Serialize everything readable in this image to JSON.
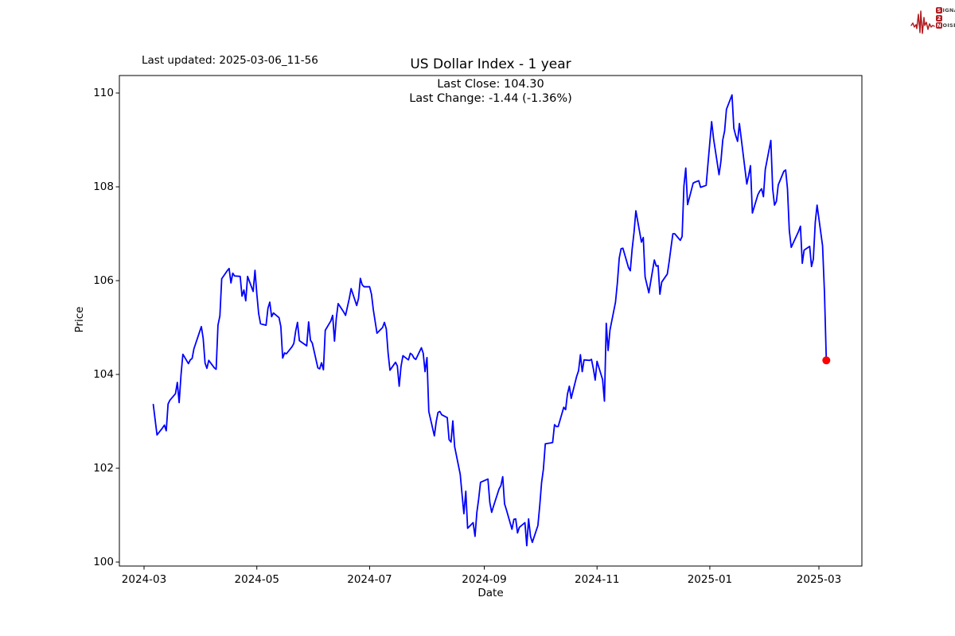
{
  "header": {
    "last_updated": "Last updated: 2025-03-06_11-56"
  },
  "logo": {
    "color": "#b01e23",
    "rows": [
      {
        "badge": "S",
        "text": "IGNAL"
      },
      {
        "badge": "2",
        "text": ""
      },
      {
        "badge": "N",
        "text": "OISE"
      }
    ]
  },
  "chart_data": {
    "type": "line",
    "title": "US Dollar Index - 1 year",
    "annotation_lines": [
      "Last Close: 104.30",
      "Last Change: -1.44 (-1.36%)"
    ],
    "xlabel": "Date",
    "ylabel": "Price",
    "line_color": "#0000ff",
    "marker_color": "#ff0000",
    "background": "#ffffff",
    "grid": false,
    "legend": false,
    "ylim": [
      99.9,
      110.37
    ],
    "xlim": [
      "2024-02-17",
      "2025-03-24"
    ],
    "y_ticks": [
      100,
      102,
      104,
      106,
      108,
      110
    ],
    "x_ticks": [
      {
        "label": "2024-03",
        "date": "2024-03-01"
      },
      {
        "label": "2024-05",
        "date": "2024-05-01"
      },
      {
        "label": "2024-07",
        "date": "2024-07-01"
      },
      {
        "label": "2024-09",
        "date": "2024-09-01"
      },
      {
        "label": "2024-11",
        "date": "2024-11-01"
      },
      {
        "label": "2025-01",
        "date": "2025-01-01"
      },
      {
        "label": "2025-03",
        "date": "2025-03-01"
      }
    ],
    "last_point": {
      "date": "2025-03-05",
      "value": 104.3
    },
    "series": [
      {
        "name": "US Dollar Index",
        "points": [
          [
            "2024-03-06",
            103.36
          ],
          [
            "2024-03-07",
            103.04
          ],
          [
            "2024-03-08",
            102.71
          ],
          [
            "2024-03-11",
            102.86
          ],
          [
            "2024-03-12",
            102.92
          ],
          [
            "2024-03-13",
            102.8
          ],
          [
            "2024-03-14",
            103.37
          ],
          [
            "2024-03-15",
            103.45
          ],
          [
            "2024-03-18",
            103.59
          ],
          [
            "2024-03-19",
            103.83
          ],
          [
            "2024-03-20",
            103.4
          ],
          [
            "2024-03-21",
            104.0
          ],
          [
            "2024-03-22",
            104.43
          ],
          [
            "2024-03-25",
            104.23
          ],
          [
            "2024-03-26",
            104.31
          ],
          [
            "2024-03-27",
            104.34
          ],
          [
            "2024-03-28",
            104.55
          ],
          [
            "2024-04-01",
            105.02
          ],
          [
            "2024-04-02",
            104.77
          ],
          [
            "2024-04-03",
            104.24
          ],
          [
            "2024-04-04",
            104.13
          ],
          [
            "2024-04-05",
            104.3
          ],
          [
            "2024-04-08",
            104.14
          ],
          [
            "2024-04-09",
            104.11
          ],
          [
            "2024-04-10",
            105.05
          ],
          [
            "2024-04-11",
            105.25
          ],
          [
            "2024-04-12",
            106.04
          ],
          [
            "2024-04-15",
            106.21
          ],
          [
            "2024-04-16",
            106.26
          ],
          [
            "2024-04-17",
            105.95
          ],
          [
            "2024-04-18",
            106.16
          ],
          [
            "2024-04-19",
            106.1
          ],
          [
            "2024-04-22",
            106.09
          ],
          [
            "2024-04-23",
            105.67
          ],
          [
            "2024-04-24",
            105.8
          ],
          [
            "2024-04-25",
            105.57
          ],
          [
            "2024-04-26",
            106.09
          ],
          [
            "2024-04-29",
            105.77
          ],
          [
            "2024-04-30",
            106.22
          ],
          [
            "2024-05-01",
            105.72
          ],
          [
            "2024-05-02",
            105.3
          ],
          [
            "2024-05-03",
            105.08
          ],
          [
            "2024-05-06",
            105.05
          ],
          [
            "2024-05-07",
            105.41
          ],
          [
            "2024-05-08",
            105.54
          ],
          [
            "2024-05-09",
            105.23
          ],
          [
            "2024-05-10",
            105.31
          ],
          [
            "2024-05-13",
            105.21
          ],
          [
            "2024-05-14",
            105.02
          ],
          [
            "2024-05-15",
            104.35
          ],
          [
            "2024-05-16",
            104.46
          ],
          [
            "2024-05-17",
            104.44
          ],
          [
            "2024-05-20",
            104.59
          ],
          [
            "2024-05-21",
            104.66
          ],
          [
            "2024-05-22",
            104.92
          ],
          [
            "2024-05-23",
            105.11
          ],
          [
            "2024-05-24",
            104.72
          ],
          [
            "2024-05-28",
            104.61
          ],
          [
            "2024-05-29",
            105.12
          ],
          [
            "2024-05-30",
            104.73
          ],
          [
            "2024-05-31",
            104.67
          ],
          [
            "2024-06-03",
            104.14
          ],
          [
            "2024-06-04",
            104.12
          ],
          [
            "2024-06-05",
            104.25
          ],
          [
            "2024-06-06",
            104.1
          ],
          [
            "2024-06-07",
            104.94
          ],
          [
            "2024-06-10",
            105.14
          ],
          [
            "2024-06-11",
            105.26
          ],
          [
            "2024-06-12",
            104.71
          ],
          [
            "2024-06-13",
            105.2
          ],
          [
            "2024-06-14",
            105.51
          ],
          [
            "2024-06-17",
            105.33
          ],
          [
            "2024-06-18",
            105.26
          ],
          [
            "2024-06-20",
            105.62
          ],
          [
            "2024-06-21",
            105.83
          ],
          [
            "2024-06-24",
            105.47
          ],
          [
            "2024-06-25",
            105.62
          ],
          [
            "2024-06-26",
            106.05
          ],
          [
            "2024-06-27",
            105.91
          ],
          [
            "2024-06-28",
            105.87
          ],
          [
            "2024-07-01",
            105.87
          ],
          [
            "2024-07-02",
            105.71
          ],
          [
            "2024-07-03",
            105.38
          ],
          [
            "2024-07-05",
            104.88
          ],
          [
            "2024-07-08",
            105.0
          ],
          [
            "2024-07-09",
            105.11
          ],
          [
            "2024-07-10",
            104.97
          ],
          [
            "2024-07-11",
            104.45
          ],
          [
            "2024-07-12",
            104.09
          ],
          [
            "2024-07-15",
            104.26
          ],
          [
            "2024-07-16",
            104.18
          ],
          [
            "2024-07-17",
            103.75
          ],
          [
            "2024-07-18",
            104.17
          ],
          [
            "2024-07-19",
            104.4
          ],
          [
            "2024-07-22",
            104.31
          ],
          [
            "2024-07-23",
            104.45
          ],
          [
            "2024-07-24",
            104.42
          ],
          [
            "2024-07-25",
            104.35
          ],
          [
            "2024-07-26",
            104.32
          ],
          [
            "2024-07-29",
            104.57
          ],
          [
            "2024-07-30",
            104.45
          ],
          [
            "2024-07-31",
            104.06
          ],
          [
            "2024-08-01",
            104.36
          ],
          [
            "2024-08-02",
            103.21
          ],
          [
            "2024-08-05",
            102.69
          ],
          [
            "2024-08-06",
            102.99
          ],
          [
            "2024-08-07",
            103.19
          ],
          [
            "2024-08-08",
            103.21
          ],
          [
            "2024-08-09",
            103.14
          ],
          [
            "2024-08-12",
            103.08
          ],
          [
            "2024-08-13",
            102.61
          ],
          [
            "2024-08-14",
            102.56
          ],
          [
            "2024-08-15",
            103.01
          ],
          [
            "2024-08-16",
            102.46
          ],
          [
            "2024-08-19",
            101.87
          ],
          [
            "2024-08-20",
            101.44
          ],
          [
            "2024-08-21",
            101.03
          ],
          [
            "2024-08-22",
            101.51
          ],
          [
            "2024-08-23",
            100.72
          ],
          [
            "2024-08-26",
            100.84
          ],
          [
            "2024-08-27",
            100.55
          ],
          [
            "2024-08-28",
            101.06
          ],
          [
            "2024-08-29",
            101.35
          ],
          [
            "2024-08-30",
            101.7
          ],
          [
            "2024-09-03",
            101.77
          ],
          [
            "2024-09-04",
            101.27
          ],
          [
            "2024-09-05",
            101.06
          ],
          [
            "2024-09-06",
            101.19
          ],
          [
            "2024-09-09",
            101.56
          ],
          [
            "2024-09-10",
            101.63
          ],
          [
            "2024-09-11",
            101.82
          ],
          [
            "2024-09-12",
            101.24
          ],
          [
            "2024-09-13",
            101.11
          ],
          [
            "2024-09-16",
            100.7
          ],
          [
            "2024-09-17",
            100.91
          ],
          [
            "2024-09-18",
            100.92
          ],
          [
            "2024-09-19",
            100.62
          ],
          [
            "2024-09-20",
            100.74
          ],
          [
            "2024-09-23",
            100.84
          ],
          [
            "2024-09-24",
            100.35
          ],
          [
            "2024-09-25",
            100.92
          ],
          [
            "2024-09-26",
            100.55
          ],
          [
            "2024-09-27",
            100.42
          ],
          [
            "2024-09-30",
            100.78
          ],
          [
            "2024-10-01",
            101.2
          ],
          [
            "2024-10-02",
            101.69
          ],
          [
            "2024-10-03",
            101.98
          ],
          [
            "2024-10-04",
            102.52
          ],
          [
            "2024-10-07",
            102.54
          ],
          [
            "2024-10-08",
            102.55
          ],
          [
            "2024-10-09",
            102.93
          ],
          [
            "2024-10-10",
            102.89
          ],
          [
            "2024-10-11",
            102.89
          ],
          [
            "2024-10-14",
            103.3
          ],
          [
            "2024-10-15",
            103.25
          ],
          [
            "2024-10-16",
            103.58
          ],
          [
            "2024-10-17",
            103.75
          ],
          [
            "2024-10-18",
            103.49
          ],
          [
            "2024-10-21",
            103.96
          ],
          [
            "2024-10-22",
            104.08
          ],
          [
            "2024-10-23",
            104.42
          ],
          [
            "2024-10-24",
            104.06
          ],
          [
            "2024-10-25",
            104.31
          ],
          [
            "2024-10-28",
            104.3
          ],
          [
            "2024-10-29",
            104.32
          ],
          [
            "2024-10-30",
            104.12
          ],
          [
            "2024-10-31",
            103.88
          ],
          [
            "2024-11-01",
            104.28
          ],
          [
            "2024-11-04",
            103.89
          ],
          [
            "2024-11-05",
            103.43
          ],
          [
            "2024-11-06",
            105.09
          ],
          [
            "2024-11-07",
            104.51
          ],
          [
            "2024-11-08",
            104.95
          ],
          [
            "2024-11-11",
            105.54
          ],
          [
            "2024-11-12",
            105.96
          ],
          [
            "2024-11-13",
            106.48
          ],
          [
            "2024-11-14",
            106.68
          ],
          [
            "2024-11-15",
            106.69
          ],
          [
            "2024-11-18",
            106.28
          ],
          [
            "2024-11-19",
            106.21
          ],
          [
            "2024-11-20",
            106.67
          ],
          [
            "2024-11-21",
            107.03
          ],
          [
            "2024-11-22",
            107.49
          ],
          [
            "2024-11-25",
            106.82
          ],
          [
            "2024-11-26",
            106.92
          ],
          [
            "2024-11-27",
            106.08
          ],
          [
            "2024-11-29",
            105.74
          ],
          [
            "2024-12-02",
            106.44
          ],
          [
            "2024-12-03",
            106.31
          ],
          [
            "2024-12-04",
            106.32
          ],
          [
            "2024-12-05",
            105.71
          ],
          [
            "2024-12-06",
            105.97
          ],
          [
            "2024-12-09",
            106.14
          ],
          [
            "2024-12-10",
            106.4
          ],
          [
            "2024-12-11",
            106.7
          ],
          [
            "2024-12-12",
            107.0
          ],
          [
            "2024-12-13",
            107.0
          ],
          [
            "2024-12-16",
            106.86
          ],
          [
            "2024-12-17",
            106.94
          ],
          [
            "2024-12-18",
            108.02
          ],
          [
            "2024-12-19",
            108.4
          ],
          [
            "2024-12-20",
            107.62
          ],
          [
            "2024-12-23",
            108.08
          ],
          [
            "2024-12-24",
            108.1
          ],
          [
            "2024-12-26",
            108.13
          ],
          [
            "2024-12-27",
            107.99
          ],
          [
            "2024-12-30",
            108.03
          ],
          [
            "2024-12-31",
            108.49
          ],
          [
            "2025-01-02",
            109.39
          ],
          [
            "2025-01-03",
            109.03
          ],
          [
            "2025-01-06",
            108.26
          ],
          [
            "2025-01-07",
            108.55
          ],
          [
            "2025-01-08",
            109.0
          ],
          [
            "2025-01-09",
            109.19
          ],
          [
            "2025-01-10",
            109.65
          ],
          [
            "2025-01-13",
            109.96
          ],
          [
            "2025-01-14",
            109.25
          ],
          [
            "2025-01-15",
            109.09
          ],
          [
            "2025-01-16",
            108.97
          ],
          [
            "2025-01-17",
            109.35
          ],
          [
            "2025-01-21",
            108.06
          ],
          [
            "2025-01-22",
            108.24
          ],
          [
            "2025-01-23",
            108.45
          ],
          [
            "2025-01-24",
            107.44
          ],
          [
            "2025-01-27",
            107.83
          ],
          [
            "2025-01-28",
            107.91
          ],
          [
            "2025-01-29",
            107.96
          ],
          [
            "2025-01-30",
            107.79
          ],
          [
            "2025-01-31",
            108.37
          ],
          [
            "2025-02-03",
            108.99
          ],
          [
            "2025-02-04",
            107.96
          ],
          [
            "2025-02-05",
            107.61
          ],
          [
            "2025-02-06",
            107.69
          ],
          [
            "2025-02-07",
            108.04
          ],
          [
            "2025-02-10",
            108.33
          ],
          [
            "2025-02-11",
            108.36
          ],
          [
            "2025-02-12",
            107.96
          ],
          [
            "2025-02-13",
            107.07
          ],
          [
            "2025-02-14",
            106.71
          ],
          [
            "2025-02-18",
            107.05
          ],
          [
            "2025-02-19",
            107.16
          ],
          [
            "2025-02-20",
            106.37
          ],
          [
            "2025-02-21",
            106.65
          ],
          [
            "2025-02-24",
            106.73
          ],
          [
            "2025-02-25",
            106.3
          ],
          [
            "2025-02-26",
            106.46
          ],
          [
            "2025-02-27",
            107.24
          ],
          [
            "2025-02-28",
            107.61
          ],
          [
            "2025-03-03",
            106.74
          ],
          [
            "2025-03-04",
            105.74
          ],
          [
            "2025-03-05",
            104.3
          ]
        ]
      }
    ]
  }
}
